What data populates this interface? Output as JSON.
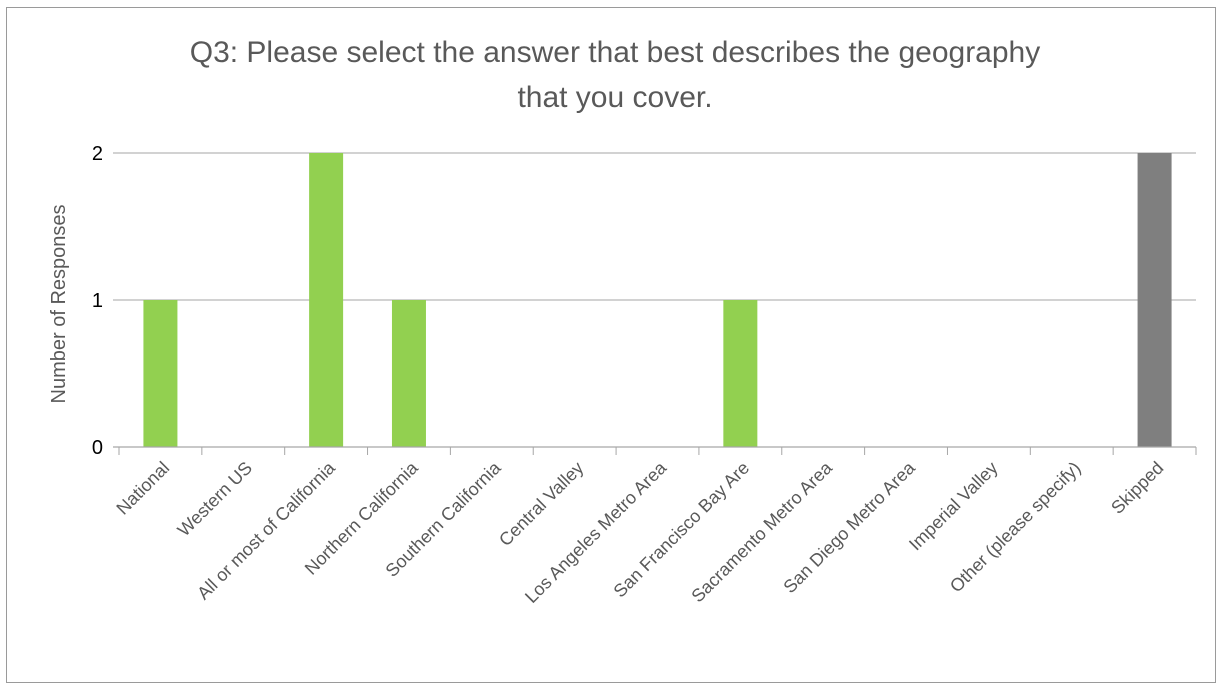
{
  "chart_data": {
    "type": "bar",
    "title_lines": [
      "Q3: Please select the answer that best describes the geography",
      "that you cover."
    ],
    "xlabel": "",
    "ylabel": "Number of Responses",
    "ylim": [
      0,
      2
    ],
    "yticks": [
      0,
      1,
      2
    ],
    "grid": true,
    "legend": "none",
    "categories": [
      "National",
      "Western US",
      "All or most of California",
      "Northern California",
      "Southern California",
      "Central Valley",
      "Los Angeles Metro Area",
      "San Francisco Bay Are",
      "Sacramento Metro Area",
      "San Diego Metro Area",
      "Imperial Valley",
      "Other (please specify)",
      "Skipped"
    ],
    "values": [
      1,
      0,
      2,
      1,
      0,
      0,
      0,
      1,
      0,
      0,
      0,
      0,
      2
    ],
    "bar_colors": [
      "#92d050",
      "#92d050",
      "#92d050",
      "#92d050",
      "#92d050",
      "#92d050",
      "#92d050",
      "#92d050",
      "#92d050",
      "#92d050",
      "#92d050",
      "#92d050",
      "#7f7f7f"
    ],
    "gridline_color": "#a6a6a6",
    "axis_color": "#a6a6a6"
  }
}
